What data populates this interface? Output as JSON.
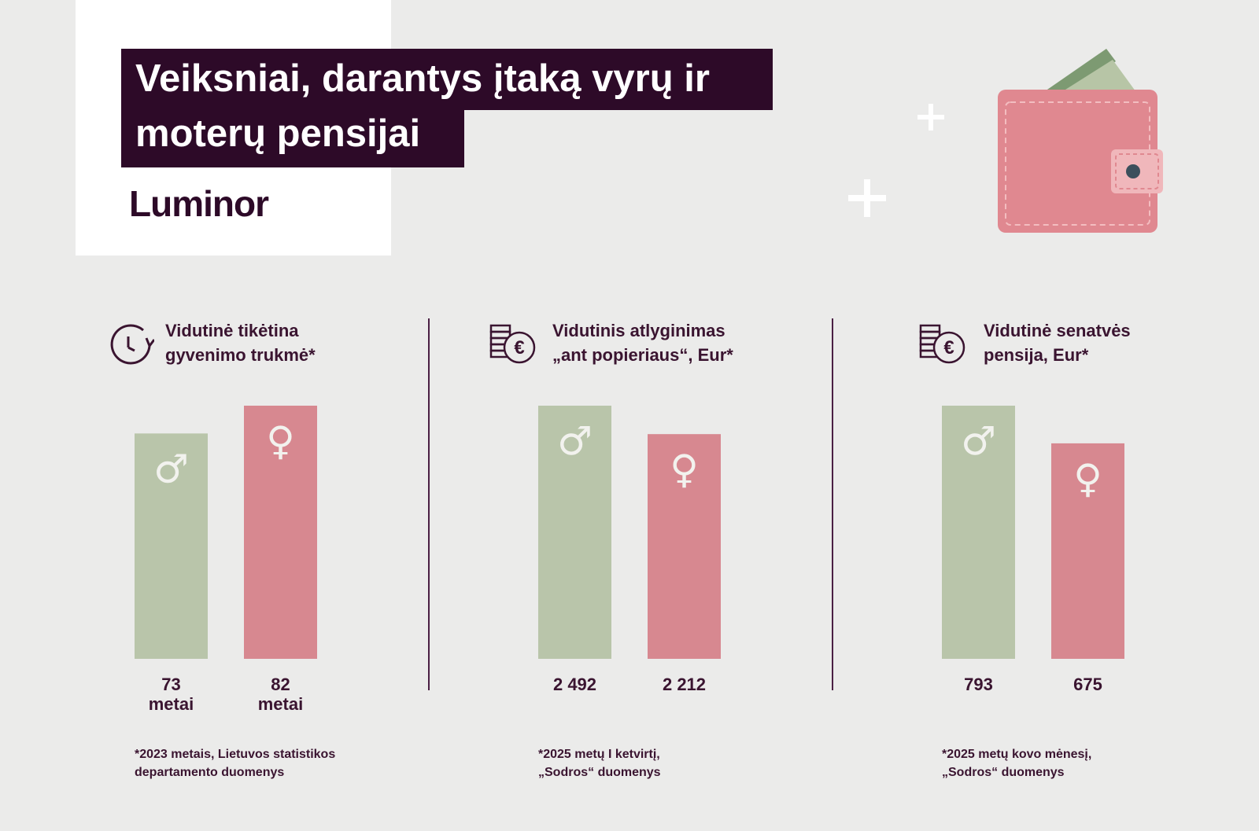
{
  "header": {
    "title_line1": "Veiksniai, darantys įtaką vyrų ir",
    "title_line2": "moterų pensijai",
    "logo": "Luminor"
  },
  "colors": {
    "background": "#ebebea",
    "title_bg": "#2d0a28",
    "male_bar": "#b9c5aa",
    "female_bar": "#d78890",
    "text": "#3a1430"
  },
  "icons": {
    "wallet": "wallet-icon",
    "clock": "clock-icon",
    "coins": "euro-coins-icon",
    "male": "male-symbol-icon",
    "female": "female-symbol-icon"
  },
  "male_symbol": "♂",
  "female_symbol": "♀",
  "panels": [
    {
      "title_line1": "Vidutinė tikėtina",
      "title_line2": "gyvenimo trukmė*",
      "footnote_line1": "*2023 metais, Lietuvos statistikos",
      "footnote_line2": "departamento duomenys"
    },
    {
      "title_line1": "Vidutinis atlyginimas",
      "title_line2": "„ant popieriaus“, Eur*",
      "footnote_line1": "*2025 metų I ketvirtį,",
      "footnote_line2": "„Sodros“ duomenys"
    },
    {
      "title_line1": "Vidutinė senatvės",
      "title_line2": "pensija, Eur*",
      "footnote_line1": "*2025 metų kovo mėnesį,",
      "footnote_line2": "„Sodros“ duomenys"
    }
  ],
  "chart_data": [
    {
      "type": "bar",
      "title": "Vidutinė tikėtina gyvenimo trukmė*",
      "categories": [
        "♂",
        "♀"
      ],
      "values": [
        73,
        82
      ],
      "value_labels": [
        "73\nmetai",
        "82\nmetai"
      ]
    },
    {
      "type": "bar",
      "title": "Vidutinis atlyginimas „ant popieriaus“, Eur*",
      "categories": [
        "♂",
        "♀"
      ],
      "values": [
        2492,
        2212
      ],
      "value_labels": [
        "2 492",
        "2 212"
      ]
    },
    {
      "type": "bar",
      "title": "Vidutinė senatvės pensija, Eur*",
      "categories": [
        "♂",
        "♀"
      ],
      "values": [
        793,
        675
      ],
      "value_labels": [
        "793",
        "675"
      ]
    }
  ]
}
